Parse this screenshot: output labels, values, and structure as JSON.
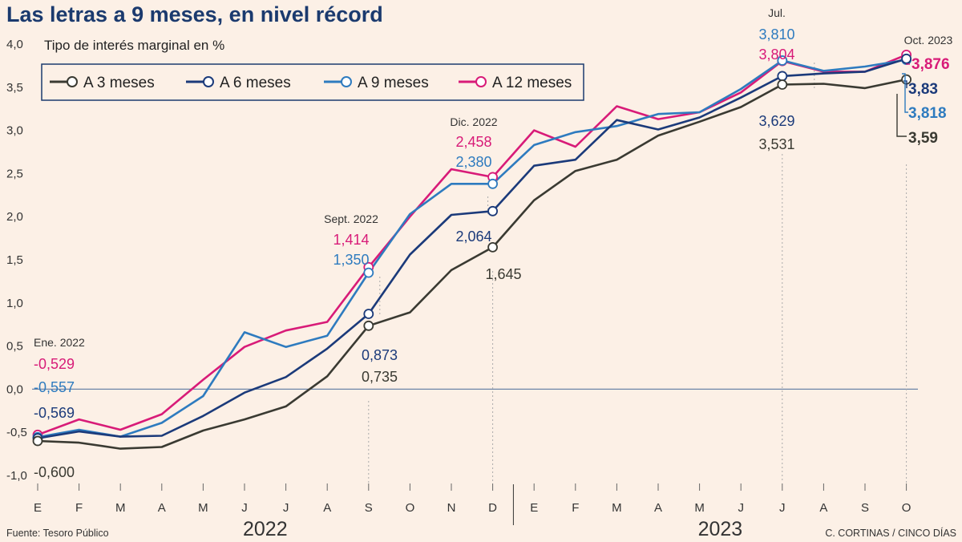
{
  "title": "Las letras a 9 meses, en nivel récord",
  "subtitle": "Tipo de interés marginal en %",
  "source": "Fuente: Tesoro Público",
  "credit": "C. CORTINAS / CINCO DÍAS",
  "colors": {
    "background": "#fcf0e6",
    "m3": "#3a3a32",
    "m6": "#1b3a7a",
    "m9": "#2e7bbf",
    "m12": "#d81b78",
    "zero_line": "#6c84a8",
    "grid_dots": "#aaaaaa"
  },
  "chart_data": {
    "type": "line",
    "title": "Las letras a 9 meses, en nivel récord",
    "ylabel": "Tipo de interés marginal en %",
    "ylim": [
      -1.0,
      4.0
    ],
    "yticks": [
      "4,0",
      "3,5",
      "3,0",
      "2,5",
      "2,0",
      "1,5",
      "1,0",
      "0,5",
      "0,0",
      "-0,5",
      "-1,0"
    ],
    "categories": [
      "E",
      "F",
      "M",
      "A",
      "M",
      "J",
      "J",
      "A",
      "S",
      "O",
      "N",
      "D",
      "E",
      "F",
      "M",
      "A",
      "M",
      "J",
      "J",
      "A",
      "S",
      "O"
    ],
    "years": [
      {
        "label": "2022",
        "from": 0,
        "to": 11
      },
      {
        "label": "2023",
        "from": 12,
        "to": 21
      }
    ],
    "series": [
      {
        "key": "m3",
        "name": "A 3 meses",
        "values": [
          -0.6,
          -0.62,
          -0.69,
          -0.67,
          -0.48,
          -0.35,
          -0.2,
          0.15,
          0.735,
          0.89,
          1.38,
          1.645,
          2.19,
          2.53,
          2.66,
          2.94,
          3.1,
          3.27,
          3.531,
          3.54,
          3.49,
          3.59
        ]
      },
      {
        "key": "m6",
        "name": "A 6 meses",
        "values": [
          -0.569,
          -0.49,
          -0.55,
          -0.54,
          -0.31,
          -0.04,
          0.14,
          0.47,
          0.873,
          1.56,
          2.02,
          2.064,
          2.59,
          2.66,
          3.12,
          3.01,
          3.15,
          3.38,
          3.629,
          3.66,
          3.68,
          3.83
        ]
      },
      {
        "key": "m9",
        "name": "A 9 meses",
        "values": [
          -0.557,
          -0.47,
          -0.55,
          -0.39,
          -0.08,
          0.66,
          0.49,
          0.62,
          1.35,
          2.03,
          2.38,
          2.38,
          2.83,
          2.98,
          3.05,
          3.19,
          3.21,
          3.48,
          3.81,
          3.69,
          3.74,
          3.818
        ]
      },
      {
        "key": "m12",
        "name": "A 12 meses",
        "values": [
          -0.529,
          -0.35,
          -0.47,
          -0.29,
          0.11,
          0.49,
          0.68,
          0.78,
          1.414,
          2.0,
          2.55,
          2.458,
          3.0,
          2.81,
          3.28,
          3.13,
          3.21,
          3.44,
          3.804,
          3.68,
          3.68,
          3.876
        ]
      }
    ],
    "annotations": {
      "ene22": {
        "date": "Ene. 2022",
        "m12": "-0,529",
        "m9": "-0,557",
        "m6": "-0,569",
        "m3": "-0,600"
      },
      "sep22": {
        "date": "Sept. 2022",
        "m12": "1,414",
        "m9": "1,350",
        "m6": "0,873",
        "m3": "0,735"
      },
      "dic22": {
        "date": "Dic. 2022",
        "m12": "2,458",
        "m9": "2,380",
        "m6": "2,064",
        "m3": "1,645"
      },
      "jul23": {
        "date": "Jul.",
        "m9": "3,810",
        "m12": "3,804",
        "m6": "3,629",
        "m3": "3,531"
      },
      "oct23": {
        "date": "Oct. 2023",
        "m12": "3,876",
        "m6": "3,83",
        "m9": "3,818",
        "m3": "3,59"
      }
    }
  }
}
